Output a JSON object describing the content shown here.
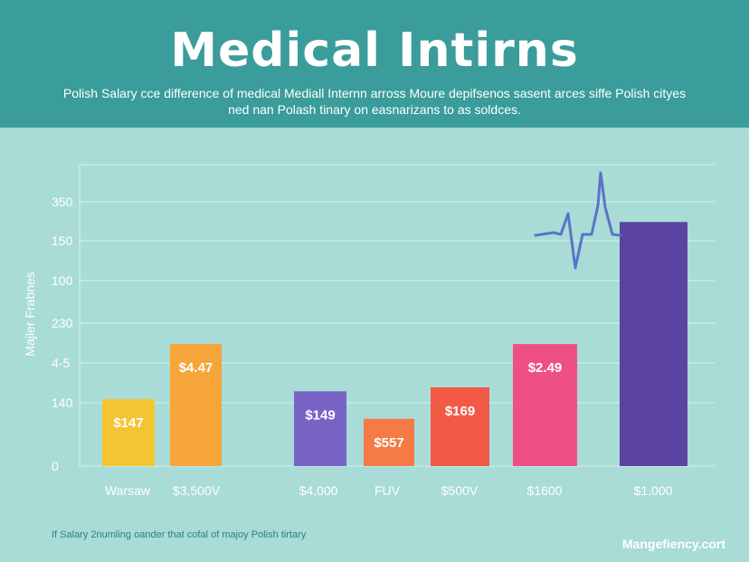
{
  "header": {
    "title": "Medical Intirns",
    "subtitle": "Polish Salary cce difference of medical Mediall Internn arross Moure depifsenos sasent arces siffe Polish cityes ned nan Polash tinary on easnarizans to as soldces."
  },
  "chart_data": {
    "type": "bar",
    "ylabel": "Majler Frabnes",
    "y_tick_labels": [
      "0",
      "140",
      "4-5",
      "230",
      "100",
      "150",
      "350"
    ],
    "categories": [
      "Warsaw",
      "$3,500V",
      "",
      "$4,000",
      "FUV",
      "$500V",
      "$1600",
      "$1,000"
    ],
    "values": [
      1.7,
      3.1,
      0,
      1.9,
      1.2,
      2.0,
      3.1,
      6.2
    ],
    "data_labels": [
      "$147",
      "$4.47",
      "",
      "$149",
      "$557",
      "$169",
      "$2.49",
      ""
    ],
    "colors": [
      "#f5c433",
      "#f5a53a",
      "",
      "#7a63c6",
      "#f57a45",
      "#f25a46",
      "#ee4f86",
      "#5b44a1"
    ],
    "grid": true,
    "annotation": "heartbeat-line"
  },
  "footer": {
    "note": "If Salary 2numling oander that cofal of majoy Polish tirtary",
    "brand": "Mangefiency.cort"
  }
}
